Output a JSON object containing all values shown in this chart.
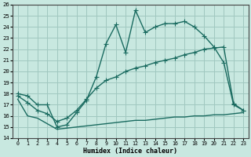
{
  "xlabel": "Humidex (Indice chaleur)",
  "xlim": [
    -0.5,
    23.5
  ],
  "ylim": [
    14,
    26
  ],
  "xticks": [
    0,
    1,
    2,
    3,
    4,
    5,
    6,
    7,
    8,
    9,
    10,
    11,
    12,
    13,
    14,
    15,
    16,
    17,
    18,
    19,
    20,
    21,
    22,
    23
  ],
  "yticks": [
    14,
    15,
    16,
    17,
    18,
    19,
    20,
    21,
    22,
    23,
    24,
    25,
    26
  ],
  "bg_color": "#c8e8e0",
  "grid_color": "#a0c8c0",
  "line_color": "#1a6b60",
  "curve1_x": [
    0,
    1,
    2,
    3,
    4,
    5,
    6,
    7,
    8,
    9,
    10,
    11,
    12,
    13,
    14,
    15,
    16,
    17,
    18,
    19,
    20,
    21,
    22,
    23
  ],
  "curve1_y": [
    18.0,
    17.8,
    17.0,
    17.0,
    15.0,
    15.2,
    16.3,
    17.4,
    19.5,
    22.5,
    24.2,
    21.7,
    25.5,
    23.5,
    24.0,
    24.3,
    24.3,
    24.5,
    24.0,
    23.2,
    22.2,
    20.8,
    17.0,
    16.5
  ],
  "curve2_x": [
    0,
    1,
    2,
    3,
    4,
    5,
    6,
    7,
    8,
    9,
    10,
    11,
    12,
    13,
    14,
    15,
    16,
    17,
    18,
    19,
    20,
    21,
    22,
    23
  ],
  "curve2_y": [
    17.8,
    17.2,
    16.5,
    16.2,
    15.5,
    15.8,
    16.5,
    17.5,
    18.5,
    19.2,
    19.5,
    20.0,
    20.3,
    20.5,
    20.8,
    21.0,
    21.2,
    21.5,
    21.7,
    22.0,
    22.1,
    22.2,
    17.1,
    16.5
  ],
  "curve3_x": [
    0,
    1,
    2,
    3,
    4,
    5,
    6,
    7,
    8,
    9,
    10,
    11,
    12,
    13,
    14,
    15,
    16,
    17,
    18,
    19,
    20,
    21,
    22,
    23
  ],
  "curve3_y": [
    17.5,
    16.0,
    15.8,
    15.3,
    14.8,
    14.9,
    15.0,
    15.1,
    15.2,
    15.3,
    15.4,
    15.5,
    15.6,
    15.6,
    15.7,
    15.8,
    15.9,
    15.9,
    16.0,
    16.0,
    16.1,
    16.1,
    16.2,
    16.3
  ],
  "marker": "+",
  "marker_size": 4.0,
  "line_width": 1.0
}
